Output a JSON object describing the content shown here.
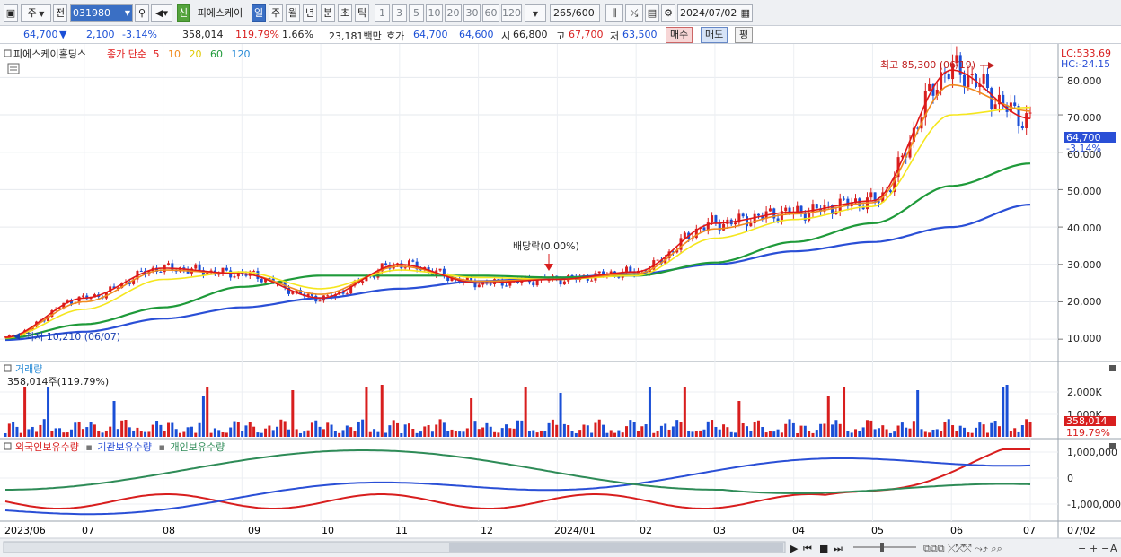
{
  "toolbar": {
    "type_label": "주",
    "prev_label": "전",
    "code_value": "031980",
    "new_badge": "신",
    "stock_name": "피에스케이",
    "periods": [
      "일",
      "주",
      "월",
      "년",
      "분",
      "초",
      "틱"
    ],
    "intervals": [
      "1",
      "3",
      "5",
      "10",
      "20",
      "30",
      "60",
      "120"
    ],
    "count_value": "265",
    "count_max": "/600",
    "date_value": "2024/07/02"
  },
  "quote": {
    "price": "64,700",
    "change_arrow": "▼",
    "change": "2,100",
    "change_pct": "-3.14%",
    "volume": "358,014",
    "volume_ratio": "119.79%",
    "turnover": "1.66%",
    "amount": "23,181백만",
    "bid_label": "호가",
    "ask_price": "64,700",
    "bid_price": "64,600",
    "open_label": "시",
    "open": "66,800",
    "high_label": "고",
    "high": "67,700",
    "low_label": "저",
    "low": "63,500",
    "buy_label": "매수",
    "sell_label": "매도",
    "eval_label": "평"
  },
  "price_panel": {
    "stock_name": "피에스케이홀딩스",
    "ma_label": "종가 단순",
    "ma_periods": [
      "5",
      "10",
      "20",
      "60",
      "120"
    ],
    "ma_colors": [
      "#e01818",
      "#f08a1e",
      "#f5e61e",
      "#1f9a3a",
      "#2a4fd6"
    ],
    "lc_label": "LC:533.69",
    "hc_label": "HC:-24.15",
    "high_annotation": "최고 85,300 (06/19)",
    "low_annotation": "최저 10,210 (06/07)",
    "dividend_annotation": "배당락(0.00%)",
    "current_price_tag": "64,700",
    "current_pct_tag": "-3.14%",
    "y_ticks": [
      "80,000",
      "70,000",
      "60,000",
      "50,000",
      "40,000",
      "30,000",
      "20,000",
      "10,000"
    ]
  },
  "volume_panel": {
    "title": "거래량",
    "value_label": "358,014주(119.79%)",
    "y_ticks": [
      "2,000K",
      "1,000K"
    ],
    "tag_value": "358,014",
    "tag_pct": "119.79%"
  },
  "holdings_panel": {
    "titles": [
      "외국인보유수량",
      "기관보유수량",
      "개인보유수량"
    ],
    "colors": [
      "#d81e1e",
      "#2a4fd6",
      "#2e8b57"
    ],
    "y_ticks": [
      "1,000,000",
      "0",
      "-1,000,000"
    ]
  },
  "x_axis": {
    "labels": [
      "2023/06",
      "07",
      "08",
      "09",
      "10",
      "11",
      "12",
      "2024/01",
      "02",
      "03",
      "04",
      "05",
      "06",
      "07"
    ],
    "right_label": "07/02"
  },
  "chart_data": {
    "type": "line",
    "title": "피에스케이홀딩스",
    "x": [
      "2023/06",
      "2023/07",
      "2023/08",
      "2023/09",
      "2023/10",
      "2023/11",
      "2023/12",
      "2024/01",
      "2024/02",
      "2024/03",
      "2024/04",
      "2024/05",
      "2024/06",
      "2024/07"
    ],
    "series": [
      {
        "name": "5",
        "values": [
          10500,
          21000,
          29000,
          27500,
          21000,
          30000,
          25000,
          26000,
          28000,
          41000,
          44000,
          47000,
          82000,
          69000
        ]
      },
      {
        "name": "10",
        "values": [
          10400,
          20000,
          28500,
          27500,
          22000,
          29500,
          25500,
          26000,
          27500,
          39500,
          43500,
          46500,
          78000,
          71000
        ]
      },
      {
        "name": "20",
        "values": [
          10300,
          18000,
          26000,
          28000,
          23500,
          28500,
          26500,
          26000,
          27000,
          37000,
          42000,
          45500,
          70000,
          72000
        ]
      },
      {
        "name": "60",
        "values": [
          10200,
          14000,
          18500,
          24000,
          27000,
          27000,
          27000,
          26500,
          27000,
          30500,
          36000,
          41000,
          51000,
          57000
        ]
      },
      {
        "name": "120",
        "values": [
          9800,
          12000,
          15500,
          18500,
          21000,
          23500,
          25500,
          26500,
          27500,
          30000,
          33500,
          36000,
          40000,
          46000
        ]
      }
    ],
    "ylim": [
      5000,
      88000
    ],
    "grid": true
  }
}
